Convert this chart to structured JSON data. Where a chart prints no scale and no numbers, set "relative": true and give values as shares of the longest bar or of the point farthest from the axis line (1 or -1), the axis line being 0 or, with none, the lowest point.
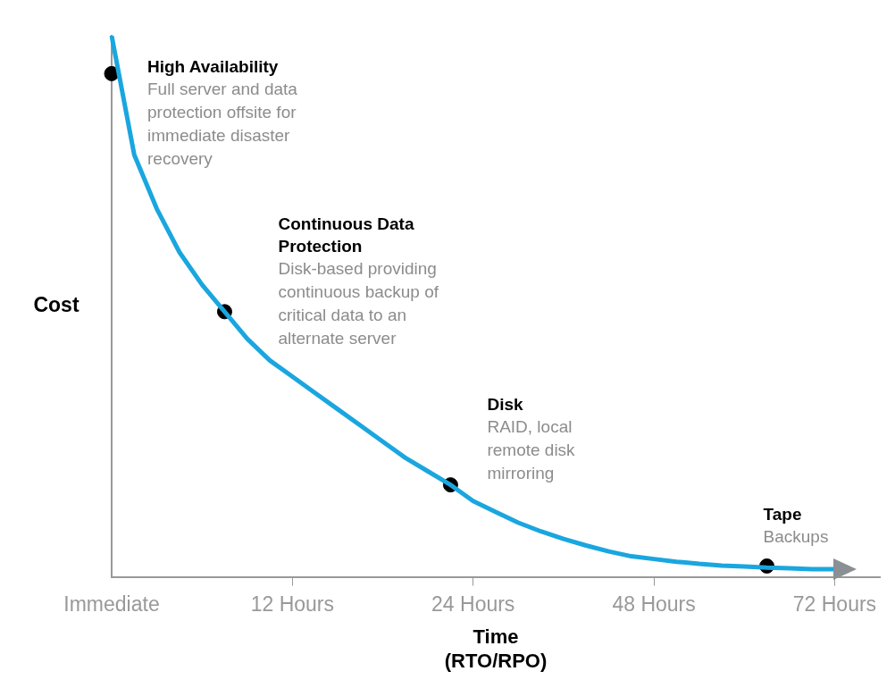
{
  "chart_data": {
    "type": "line",
    "ylabel": "Cost",
    "xlabel": "Time (RTO/RPO)",
    "relative": true,
    "grid": false,
    "legend": false,
    "categories": [
      "Immediate",
      null,
      null,
      null,
      null,
      null,
      null,
      null,
      "12 Hours",
      null,
      null,
      null,
      null,
      null,
      null,
      null,
      "24 Hours",
      null,
      null,
      null,
      null,
      null,
      null,
      null,
      "48 Hours",
      null,
      null,
      null,
      null,
      null,
      null,
      null,
      "72 Hours",
      null,
      null
    ],
    "series": [
      {
        "color": "#1aa6df",
        "marker": "none",
        "values": [
          1,
          0.78,
          0.68,
          0.6,
          0.54,
          0.49,
          0.44,
          0.4,
          0.37,
          0.34,
          0.31,
          0.28,
          0.25,
          0.22,
          0.195,
          0.17,
          0.14,
          0.12,
          0.1,
          0.084,
          0.07,
          0.058,
          0.047,
          0.038,
          0.033,
          0.028,
          0.024,
          0.021,
          0.019,
          0.017,
          0.016,
          0.014,
          0.014,
          null,
          null
        ]
      },
      {
        "type": "scatter",
        "name": "High Availability",
        "color": "#000000",
        "marker": "circle",
        "values": [
          0.93,
          null,
          null,
          null,
          null,
          null,
          null,
          null,
          null,
          null,
          null,
          null,
          null,
          null,
          null,
          null,
          null,
          null,
          null,
          null,
          null,
          null,
          null,
          null,
          null,
          null,
          null,
          null,
          null,
          null,
          null,
          null,
          null,
          null,
          null
        ]
      },
      {
        "type": "scatter",
        "name": "Continuous Data Protection",
        "color": "#000000",
        "marker": "circle",
        "values": [
          null,
          null,
          null,
          null,
          null,
          0.49,
          null,
          null,
          null,
          null,
          null,
          null,
          null,
          null,
          null,
          null,
          null,
          null,
          null,
          null,
          null,
          null,
          null,
          null,
          null,
          null,
          null,
          null,
          null,
          null,
          null,
          null,
          null,
          null,
          null
        ]
      },
      {
        "type": "scatter",
        "name": "Disk",
        "color": "#000000",
        "marker": "circle",
        "values": [
          null,
          null,
          null,
          null,
          null,
          null,
          null,
          null,
          null,
          null,
          null,
          null,
          null,
          null,
          null,
          0.17,
          null,
          null,
          null,
          null,
          null,
          null,
          null,
          null,
          null,
          null,
          null,
          null,
          null,
          null,
          null,
          null,
          null,
          null,
          null
        ]
      },
      {
        "type": "scatter",
        "name": "Tape",
        "color": "#000000",
        "marker": "circle",
        "values": [
          null,
          null,
          null,
          null,
          null,
          null,
          null,
          null,
          null,
          null,
          null,
          null,
          null,
          null,
          null,
          null,
          null,
          null,
          null,
          null,
          null,
          null,
          null,
          null,
          null,
          null,
          null,
          null,
          null,
          0.02,
          null,
          null,
          null,
          null,
          null
        ]
      }
    ],
    "annotations": [
      "Full server and data protection offsite for immediate disaster recovery",
      "Disk-based providing continuous backup of critical data to an alternate server",
      "RAID, local remote disk mirroring",
      "Backups"
    ]
  }
}
